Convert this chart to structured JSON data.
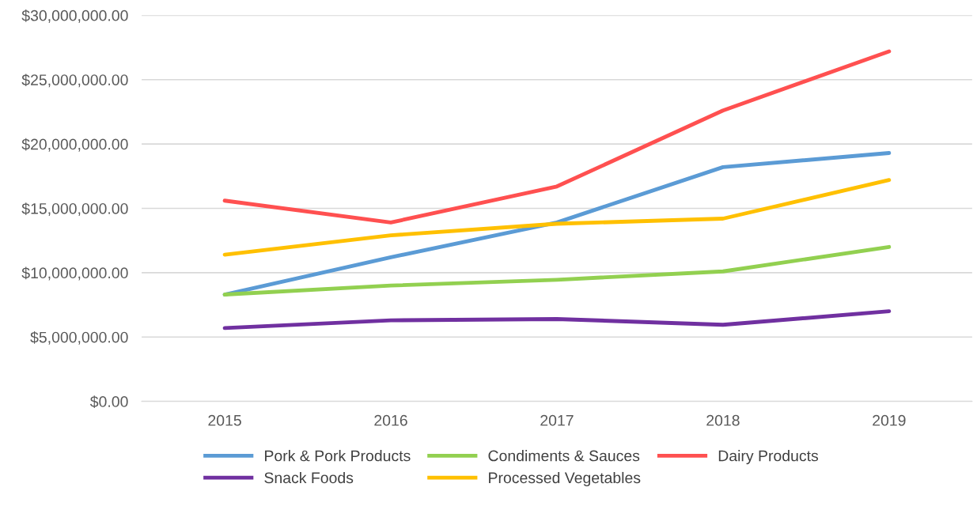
{
  "chart_data": {
    "type": "line",
    "categories": [
      "2015",
      "2016",
      "2017",
      "2018",
      "2019"
    ],
    "series": [
      {
        "name": "Pork & Pork Products",
        "color": "#5b9bd5",
        "values": [
          8300000,
          11200000,
          13900000,
          18200000,
          19300000
        ]
      },
      {
        "name": "Snack Foods",
        "color": "#7030a0",
        "values": [
          5700000,
          6300000,
          6400000,
          5950000,
          7000000
        ]
      },
      {
        "name": "Condiments & Sauces",
        "color": "#92d050",
        "values": [
          8300000,
          9000000,
          9450000,
          10100000,
          12000000
        ]
      },
      {
        "name": "Processed Vegetables",
        "color": "#ffc000",
        "values": [
          11400000,
          12900000,
          13800000,
          14200000,
          17200000
        ]
      },
      {
        "name": "Dairy Products",
        "color": "#ff5050",
        "values": [
          15600000,
          13900000,
          16700000,
          22600000,
          27200000
        ]
      }
    ],
    "ylim": [
      0,
      30000000
    ],
    "yticks": [
      {
        "value": 0,
        "label": "$0.00"
      },
      {
        "value": 5000000,
        "label": "$5,000,000.00"
      },
      {
        "value": 10000000,
        "label": "$10,000,000.00"
      },
      {
        "value": 15000000,
        "label": "$15,000,000.00"
      },
      {
        "value": 20000000,
        "label": "$20,000,000.00"
      },
      {
        "value": 25000000,
        "label": "$25,000,000.00"
      },
      {
        "value": 30000000,
        "label": "$30,000,000.00"
      }
    ],
    "grid": "y",
    "legend": "bottom",
    "marker": "none",
    "line_style": "solid"
  }
}
